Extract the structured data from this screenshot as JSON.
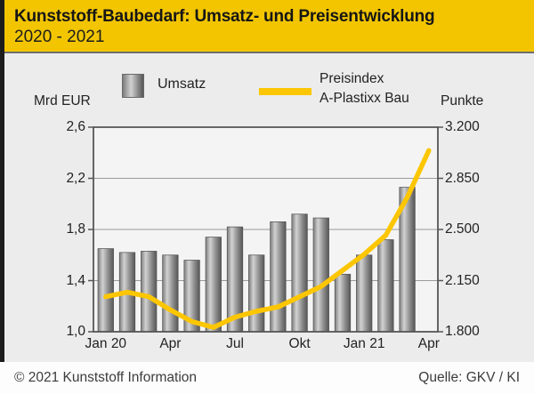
{
  "header": {
    "title": "Kunststoff-Baubedarf: Umsatz- und Preisentwicklung",
    "subtitle": "2020 - 2021"
  },
  "legend": {
    "left_axis_unit": "Mrd EUR",
    "bar_label": "Umsatz",
    "line_label_line1": "Preisindex",
    "line_label_line2": "A-Plastixx Bau",
    "right_axis_unit": "Punkte"
  },
  "chart_data": {
    "type": "bar+line",
    "months": [
      "Jan 20",
      "Feb 20",
      "Mär 20",
      "Apr 20",
      "Mai 20",
      "Jun 20",
      "Jul 20",
      "Aug 20",
      "Sep 20",
      "Okt 20",
      "Nov 20",
      "Dez 20",
      "Jan 21",
      "Feb 21",
      "Mär 21",
      "Apr 21"
    ],
    "x_tick_labels": [
      "Jan 20",
      "Apr",
      "Jul",
      "Okt",
      "Jan 21",
      "Apr"
    ],
    "x_tick_month_indices": [
      0,
      3,
      6,
      9,
      12,
      15
    ],
    "bar_series": {
      "name": "Umsatz",
      "unit": "Mrd EUR",
      "axis": "left",
      "values": [
        1.65,
        1.62,
        1.63,
        1.6,
        1.56,
        1.74,
        1.82,
        1.6,
        1.86,
        1.92,
        1.89,
        1.45,
        1.6,
        1.72,
        2.13,
        null
      ]
    },
    "line_series": {
      "name": "Preisindex A-Plastixx Bau",
      "unit": "Punkte",
      "axis": "right",
      "values": [
        2040,
        2070,
        2040,
        1950,
        1870,
        1830,
        1900,
        1940,
        1970,
        2040,
        2110,
        2220,
        2330,
        2460,
        2720,
        3040
      ]
    },
    "left_axis": {
      "tick_labels_top_to_bottom": [
        "2,6",
        "2,2",
        "1,8",
        "1,4",
        "1,0"
      ],
      "min": 1.0,
      "max": 2.6
    },
    "right_axis": {
      "tick_labels_top_to_bottom": [
        "3.200",
        "2.850",
        "2.500",
        "2.150",
        "1.800"
      ],
      "min": 1800,
      "max": 3200
    },
    "gridlines_left_values": [
      2.2,
      1.8,
      1.4
    ],
    "grid": "horizontal-only",
    "legend_position": "top"
  },
  "footer": {
    "copyright": "© 2021 Kunststoff Information",
    "source": "Quelle: GKV / KI"
  },
  "colors": {
    "header_background": "#F2C500",
    "line_yellow": "#FCC602",
    "panel_background": "#ECECEC",
    "plot_background": "#F4F4F4",
    "plot_frame": "#565656",
    "gridline": "#9a9a9a",
    "bar_gradient": [
      "#7d7d7d",
      "#d2d2d2",
      "#8f8f8f",
      "#565656"
    ],
    "left_strip": "#1c1c1c",
    "text_dark": "#1d1d1d"
  }
}
